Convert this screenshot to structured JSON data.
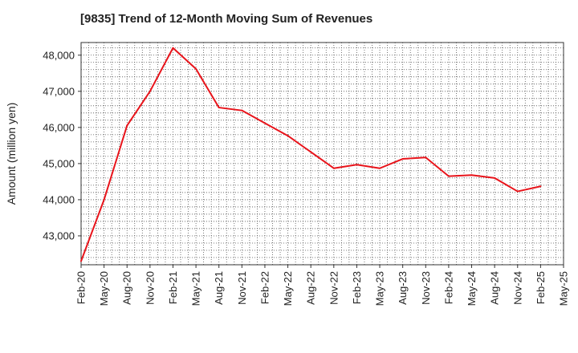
{
  "chart_data": {
    "type": "line",
    "title": "[9835]  Trend of 12-Month Moving Sum of Revenues",
    "xlabel": "",
    "ylabel": "Amount (million yen)",
    "x_ticks": [
      "Feb-20",
      "May-20",
      "Aug-20",
      "Nov-20",
      "Feb-21",
      "May-21",
      "Aug-21",
      "Nov-21",
      "Feb-22",
      "May-22",
      "Aug-22",
      "Nov-22",
      "Feb-23",
      "May-23",
      "Aug-23",
      "Nov-23",
      "Feb-24",
      "May-24",
      "Aug-24",
      "Nov-24",
      "Feb-25",
      "May-25"
    ],
    "y_ticks": [
      43000,
      44000,
      45000,
      46000,
      47000,
      48000
    ],
    "ylim": [
      42200,
      48350
    ],
    "grid": true,
    "series": [
      {
        "color": "#e8141b",
        "x": [
          "Feb-20",
          "May-20",
          "Aug-20",
          "Nov-20",
          "Feb-21",
          "May-21",
          "Aug-21",
          "Nov-21",
          "Feb-22",
          "May-22",
          "Aug-22",
          "Nov-22",
          "Feb-23",
          "May-23",
          "Aug-23",
          "Nov-23",
          "Feb-24",
          "May-24",
          "Aug-24",
          "Nov-24",
          "Feb-25"
        ],
        "values": [
          42300,
          44000,
          46050,
          47000,
          48200,
          47620,
          46550,
          46470,
          46120,
          45770,
          45320,
          44870,
          44970,
          44870,
          45130,
          45170,
          44650,
          44680,
          44600,
          44230,
          44370
        ]
      }
    ]
  }
}
